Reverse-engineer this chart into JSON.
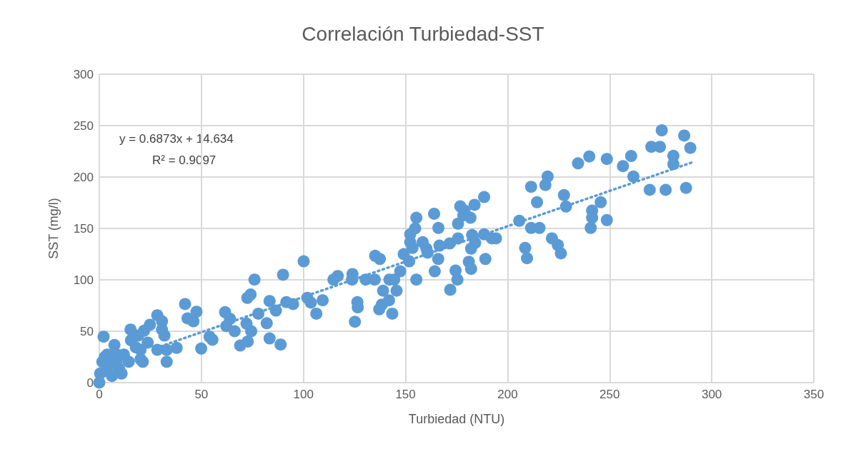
{
  "chart_data": {
    "type": "scatter",
    "title": "Correlación Turbiedad-SST",
    "xlabel": "Turbiedad (NTU)",
    "ylabel": "SST (mg/l)",
    "xlim": [
      0,
      350
    ],
    "xticks": [
      0,
      50,
      100,
      150,
      200,
      250,
      300,
      350
    ],
    "ylim": [
      0,
      300
    ],
    "yticks": [
      0,
      50,
      100,
      150,
      200,
      250,
      300
    ],
    "grid": true,
    "marker": "circle",
    "annotations": [
      "y = 0.6873x + 14.634",
      "R² = 0.9097"
    ],
    "series": [
      {
        "color": "#5b9bd5",
        "x": [
          275.5,
          286.5,
          270.4,
          274.6,
          289.5,
          281.2,
          281.2,
          269.6,
          277.4,
          287.4,
          240,
          234.5,
          248.6,
          256.5,
          260.5,
          261.6,
          248.6,
          245.6,
          241.4,
          241.4,
          240.7,
          227.6,
          228.6,
          219.6,
          218.5,
          211.5,
          214.4,
          211.5,
          215.6,
          221.7,
          224.6,
          226.1,
          208.6,
          209.5,
          205.7,
          194.3,
          188.5,
          183.8,
          176.8,
          178.9,
          181.8,
          175.7,
          178.3,
          164,
          155.3,
          166.1,
          154.7,
          152.3,
          152.3,
          153.4,
          158.4,
          160.2,
          160.8,
          166.6,
          171.6,
          175.7,
          182.6,
          188.5,
          192.3,
          184.1,
          182.1,
          166,
          189.1,
          181,
          182.1,
          174.5,
          164.3,
          175.4,
          171.9,
          155.3,
          149.1,
          151.8,
          147.4,
          145.6,
          142.1,
          144.4,
          139,
          141.9,
          138.4,
          137.1,
          143.5,
          135.1,
          137.4,
          134.9,
          130.5,
          124,
          123.8,
          116.8,
          114.7,
          126.4,
          126.6,
          125.2,
          109.4,
          106.3,
          100.1,
          90,
          76,
          72.5,
          74.1,
          83.4,
          91.6,
          94.9,
          101.9,
          103.6,
          86.5,
          77.9,
          61.6,
          64,
          62.2,
          72.1,
          66.3,
          74.4,
          82,
          83.4,
          88.8,
          72.7,
          69,
          42,
          47.6,
          43.2,
          46.1,
          54,
          55.4,
          49.9,
          37.9,
          28.4,
          30.7,
          2.1,
          15.3,
          24.8,
          21.9,
          31.9,
          30.7,
          28.4,
          33,
          33,
          20.2,
          21.3,
          7.4,
          15.5,
          17.9,
          12,
          3.9,
          1.5,
          8.5,
          14.4,
          9.7,
          0.4,
          3.9,
          6.2,
          0,
          10.9,
          20.2,
          23.7,
          19,
          8.5,
          5,
          2.7
        ],
        "values": [
          245.4,
          240.3,
          229.4,
          229.4,
          228.3,
          220.6,
          212.5,
          187.5,
          187.5,
          189.4,
          220,
          213.3,
          217.6,
          210.6,
          220.4,
          200.5,
          158.1,
          175.5,
          167.4,
          160.4,
          150.5,
          182.4,
          171.3,
          200.5,
          192.2,
          190.5,
          175.5,
          150.5,
          150.5,
          140.3,
          133.8,
          125.7,
          131,
          121,
          157.4,
          140.3,
          180.5,
          173,
          171.5,
          167.4,
          160.4,
          154.6,
          162.7,
          164.3,
          160.4,
          150.5,
          150,
          144.2,
          136.6,
          131,
          136.6,
          130.3,
          126.4,
          133.3,
          135.4,
          140.3,
          143.5,
          144.2,
          140.3,
          136,
          130.3,
          120.3,
          120.3,
          117.6,
          110.6,
          109,
          108.3,
          100.2,
          90.3,
          100.2,
          125,
          118,
          108.3,
          89.4,
          100.2,
          100.2,
          89.4,
          80.1,
          75.9,
          71.3,
          67.1,
          123.4,
          120.3,
          100.2,
          100.2,
          105.6,
          100.2,
          103.7,
          100.2,
          78.3,
          73.2,
          59.2,
          80.1,
          67.1,
          118,
          104.9,
          100.2,
          82.4,
          85.7,
          79.4,
          78.3,
          76.4,
          82.4,
          77.8,
          70.1,
          67.1,
          68.5,
          62,
          55,
          57.4,
          50,
          50,
          57.8,
          43,
          37,
          40,
          36.1,
          76.4,
          69,
          62.5,
          59.7,
          44.7,
          41.7,
          33.1,
          33.8,
          65.5,
          59.7,
          44.7,
          51.6,
          56.3,
          50.5,
          45.8,
          51.6,
          31.9,
          20.3,
          31.9,
          22.7,
          20.3,
          36.6,
          41.2,
          34.2,
          27.3,
          27.3,
          20.3,
          20.3,
          20.3,
          13.4,
          8.8,
          11.1,
          6.5,
          0,
          8.8,
          31.9,
          38.9,
          45.8,
          27.3,
          18.1,
          25
        ]
      },
      {
        "type": "line",
        "color": "#5b9bd5",
        "marker": "none",
        "line_style": "dotted",
        "x": [
          30,
          290
        ],
        "values": [
          35.3,
          214.0
        ]
      }
    ]
  }
}
